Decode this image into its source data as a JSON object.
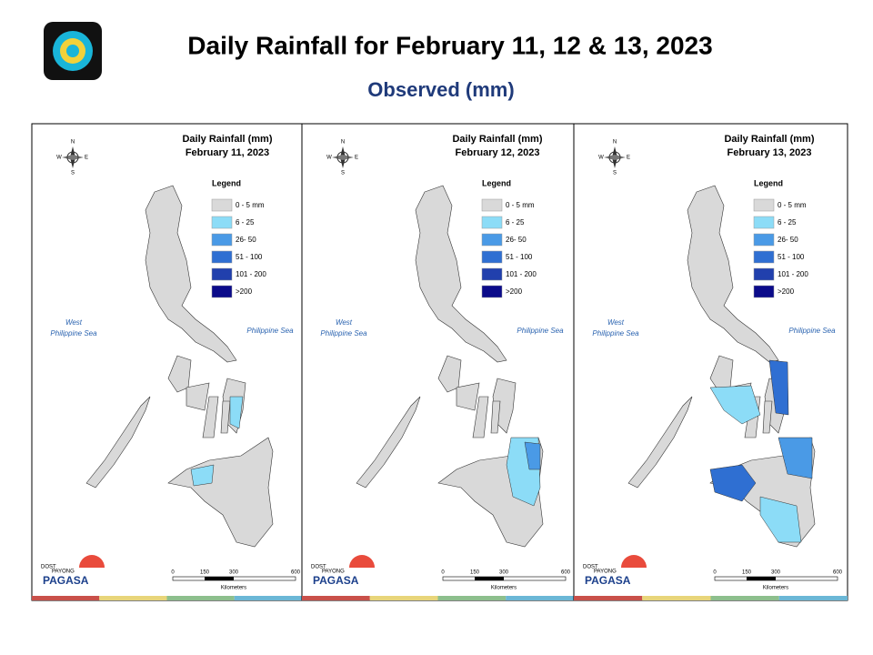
{
  "header": {
    "title": "Daily Rainfall for February 11, 12 & 13, 2023",
    "subtitle": "Observed (mm)"
  },
  "panels": [
    {
      "heading": "Daily Rainfall (mm)",
      "date": "February 11, 2023"
    },
    {
      "heading": "Daily Rainfall (mm)",
      "date": "February 12, 2023"
    },
    {
      "heading": "Daily Rainfall (mm)",
      "date": "February 13, 2023"
    }
  ],
  "legend": {
    "title": "Legend",
    "items": [
      {
        "label": "0 - 5 mm",
        "color": "#d9d9d9"
      },
      {
        "label": "6 - 25",
        "color": "#8cdcf7"
      },
      {
        "label": "26- 50",
        "color": "#4a9ae6"
      },
      {
        "label": "51 - 100",
        "color": "#2f6fd2"
      },
      {
        "label": "101 - 200",
        "color": "#2140ad"
      },
      {
        "label": ">200",
        "color": "#0b0b8a"
      }
    ]
  },
  "seas": {
    "west": [
      "West",
      "Philippine Sea"
    ],
    "east": "Philippine Sea"
  },
  "compass": {
    "n": "N",
    "s": "S",
    "e": "E",
    "w": "W"
  },
  "scale": {
    "ticks": [
      "0",
      "150",
      "300",
      "600"
    ],
    "unit": "Kilometers"
  },
  "logo": {
    "top": "DOST",
    "mid": "PAYONG",
    "name": "PAGASA"
  }
}
